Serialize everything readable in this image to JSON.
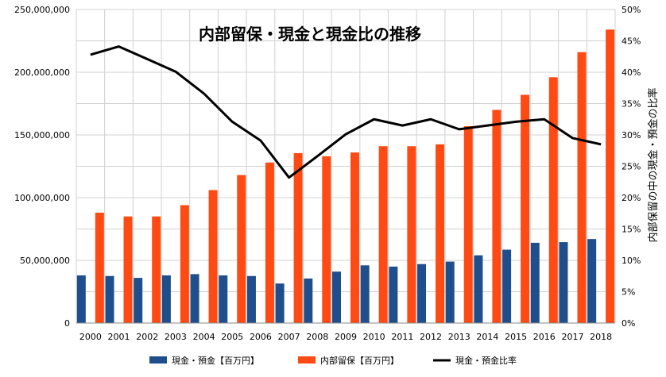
{
  "chart_data": {
    "type": "bar",
    "title": "内部留保・現金と現金比の推移",
    "categories": [
      "2000",
      "2001",
      "2002",
      "2003",
      "2004",
      "2005",
      "2006",
      "2007",
      "2008",
      "2009",
      "2010",
      "2011",
      "2012",
      "2013",
      "2014",
      "2015",
      "2016",
      "2017",
      "2018"
    ],
    "series": [
      {
        "name": "現金・預金【百万円】",
        "type": "bar",
        "axis": "left",
        "color": "#1f4e8c",
        "values": [
          38000000,
          37500000,
          36000000,
          38000000,
          39000000,
          38000000,
          37500000,
          31500000,
          35500000,
          41000000,
          46000000,
          45000000,
          47000000,
          49000000,
          54000000,
          58500000,
          64000000,
          64500000,
          67000000
        ]
      },
      {
        "name": "内部留保【百万円】",
        "type": "bar",
        "axis": "left",
        "color": "#ff4a13",
        "values": [
          88000000,
          85000000,
          85000000,
          94000000,
          106000000,
          118000000,
          128000000,
          135500000,
          133000000,
          136000000,
          141000000,
          141000000,
          142500000,
          157000000,
          170000000,
          182000000,
          196000000,
          216000000,
          234000000
        ]
      },
      {
        "name": "現金・預金比率",
        "type": "line",
        "axis": "right",
        "color": "#000000",
        "values": [
          0.428,
          0.441,
          0.421,
          0.401,
          0.366,
          0.321,
          0.291,
          0.232,
          0.266,
          0.301,
          0.325,
          0.315,
          0.325,
          0.309,
          0.315,
          0.321,
          0.325,
          0.295,
          0.285
        ]
      }
    ],
    "y_left": {
      "min": 0,
      "max": 250000000,
      "ticks": [
        0,
        50000000,
        100000000,
        150000000,
        200000000,
        250000000
      ],
      "tick_labels": [
        "0",
        "50,000,000",
        "100,000,000",
        "150,000,000",
        "200,000,000",
        "250,000,000"
      ]
    },
    "y_right": {
      "label": "内部保留の中の現金・預金の比率",
      "min": 0,
      "max": 0.5,
      "ticks": [
        0,
        0.05,
        0.1,
        0.15,
        0.2,
        0.25,
        0.3,
        0.35,
        0.4,
        0.45,
        0.5
      ],
      "tick_labels": [
        "0%",
        "5%",
        "10%",
        "15%",
        "20%",
        "25%",
        "30%",
        "35%",
        "40%",
        "45%",
        "50%"
      ]
    },
    "grid": true,
    "legend": "bottom"
  }
}
